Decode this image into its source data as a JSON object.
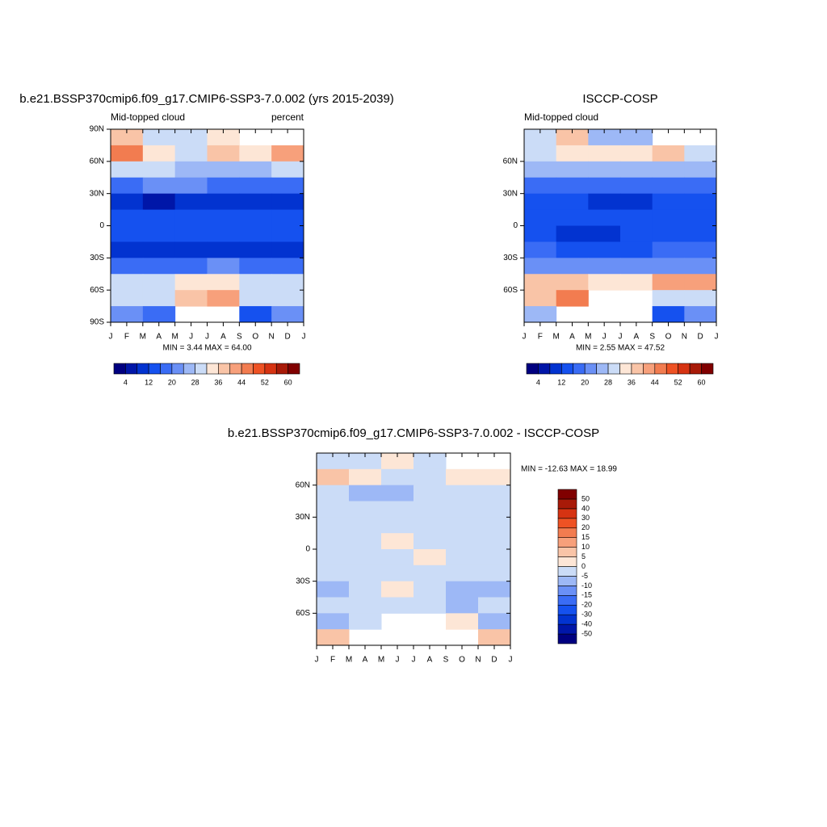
{
  "chart_data": [
    {
      "type": "contour",
      "title": "b.e21.BSSP370cmip6.f09_g17.CMIP6-SSP3-7.0.002 (yrs 2015-2039)",
      "subtitle_left": "Mid-topped cloud",
      "subtitle_right": "percent",
      "stats": "MIN =   3.44 MAX =  64.00",
      "categories": [
        "J",
        "F",
        "M",
        "A",
        "M",
        "J",
        "J",
        "A",
        "S",
        "O",
        "N",
        "D",
        "J"
      ],
      "ylim": [
        -90,
        90
      ],
      "yticks": [
        {
          "value": 90,
          "label": "90N"
        },
        {
          "value": 60,
          "label": "60N"
        },
        {
          "value": 30,
          "label": "30N"
        },
        0,
        {
          "value": -30,
          "label": "30S"
        },
        {
          "value": -60,
          "label": "60S"
        },
        {
          "value": -90,
          "label": "90S"
        }
      ],
      "z": [
        [
          38,
          30,
          28,
          34,
          null,
          null
        ],
        [
          44,
          34,
          30,
          36,
          34,
          42
        ],
        [
          30,
          28,
          26,
          26,
          26,
          28
        ],
        [
          18,
          20,
          20,
          18,
          18,
          18
        ],
        [
          8,
          6,
          8,
          10,
          10,
          8
        ],
        [
          12,
          12,
          14,
          14,
          12,
          12
        ],
        [
          14,
          14,
          15,
          14,
          14,
          14
        ],
        [
          10,
          10,
          10,
          10,
          10,
          10
        ],
        [
          18,
          18,
          18,
          20,
          18,
          18
        ],
        [
          30,
          30,
          34,
          32,
          30,
          30
        ],
        [
          28,
          30,
          36,
          40,
          30,
          28
        ],
        [
          20,
          18,
          null,
          null,
          14,
          22
        ]
      ],
      "levels": [
        4,
        8,
        12,
        16,
        20,
        24,
        28,
        32,
        36,
        40,
        44,
        48,
        52,
        56,
        60
      ],
      "level_ticks": [
        4,
        12,
        20,
        28,
        36,
        44,
        52,
        60
      ],
      "colors": [
        "#000080",
        "#0016a8",
        "#0233d0",
        "#1551ef",
        "#3a6cf5",
        "#6a90f6",
        "#9db8f6",
        "#cbdcf7",
        "#fde6d6",
        "#f9c4a7",
        "#f7a07b",
        "#f27c50",
        "#ee5224",
        "#d63312",
        "#a81a08",
        "#800000"
      ],
      "colorbar": "horizontal"
    },
    {
      "type": "contour",
      "title": "ISCCP-COSP",
      "subtitle_left": "Mid-topped cloud",
      "stats": "MIN =   2.55 MAX =  47.52",
      "categories": [
        "J",
        "F",
        "M",
        "A",
        "M",
        "J",
        "J",
        "A",
        "S",
        "O",
        "N",
        "D",
        "J"
      ],
      "ylim": [
        -90,
        90
      ],
      "yticks": [
        {
          "value": 60,
          "label": "60N"
        },
        {
          "value": 30,
          "label": "30N"
        },
        0,
        {
          "value": -30,
          "label": "30S"
        },
        {
          "value": -60,
          "label": "60S"
        }
      ],
      "z": [
        [
          28,
          36,
          26,
          26,
          null,
          null
        ],
        [
          30,
          34,
          32,
          34,
          36,
          30
        ],
        [
          24,
          24,
          24,
          24,
          24,
          26
        ],
        [
          18,
          18,
          18,
          16,
          18,
          18
        ],
        [
          12,
          12,
          10,
          10,
          12,
          12
        ],
        [
          14,
          14,
          14,
          14,
          14,
          14
        ],
        [
          14,
          11,
          11,
          12,
          14,
          14
        ],
        [
          16,
          14,
          14,
          14,
          16,
          16
        ],
        [
          22,
          22,
          22,
          22,
          22,
          22
        ],
        [
          36,
          36,
          34,
          34,
          40,
          40
        ],
        [
          36,
          44,
          null,
          null,
          30,
          30
        ],
        [
          24,
          null,
          null,
          null,
          14,
          20
        ]
      ],
      "levels": [
        4,
        8,
        12,
        16,
        20,
        24,
        28,
        32,
        36,
        40,
        44,
        48,
        52,
        56,
        60
      ],
      "level_ticks": [
        4,
        12,
        20,
        28,
        36,
        44,
        52,
        60
      ],
      "colors": [
        "#000080",
        "#0016a8",
        "#0233d0",
        "#1551ef",
        "#3a6cf5",
        "#6a90f6",
        "#9db8f6",
        "#cbdcf7",
        "#fde6d6",
        "#f9c4a7",
        "#f7a07b",
        "#f27c50",
        "#ee5224",
        "#d63312",
        "#a81a08",
        "#800000"
      ],
      "colorbar": "horizontal"
    },
    {
      "type": "contour",
      "title": "b.e21.BSSP370cmip6.f09_g17.CMIP6-SSP3-7.0.002 - ISCCP-COSP",
      "stats": "MIN = -12.63 MAX =  18.99",
      "categories": [
        "J",
        "F",
        "M",
        "A",
        "M",
        "J",
        "J",
        "A",
        "S",
        "O",
        "N",
        "D",
        "J"
      ],
      "ylim": [
        -90,
        90
      ],
      "yticks": [
        {
          "value": 60,
          "label": "60N"
        },
        {
          "value": 30,
          "label": "30N"
        },
        0,
        {
          "value": -30,
          "label": "30S"
        },
        {
          "value": -60,
          "label": "60S"
        }
      ],
      "z": [
        [
          -3,
          -2,
          3,
          -3,
          null,
          null
        ],
        [
          6,
          3,
          -3,
          -2,
          4,
          2
        ],
        [
          -3,
          -7,
          -8,
          -3,
          -3,
          -3
        ],
        [
          -5,
          -3,
          -3,
          -2,
          -3,
          -3
        ],
        [
          -3,
          -3,
          -3,
          -2,
          -2,
          -3
        ],
        [
          -3,
          -3,
          2,
          -3,
          -2,
          -3
        ],
        [
          -3,
          -3,
          -3,
          3,
          -3,
          -3
        ],
        [
          -3,
          -3,
          -3,
          -3,
          -3,
          -3
        ],
        [
          -7,
          -3,
          3,
          -3,
          -7,
          -7
        ],
        [
          -3,
          -3,
          -3,
          -2,
          -7,
          -3
        ],
        [
          -8,
          -3,
          null,
          null,
          3,
          -8
        ],
        [
          8,
          null,
          null,
          null,
          null,
          8
        ]
      ],
      "levels": [
        -50,
        -40,
        -30,
        -20,
        -15,
        -10,
        -5,
        0,
        5,
        10,
        15,
        20,
        30,
        40,
        50
      ],
      "level_ticks": [
        -50,
        -40,
        -30,
        -20,
        -15,
        -10,
        -5,
        0,
        5,
        10,
        15,
        20,
        30,
        40,
        50
      ],
      "colors": [
        "#000080",
        "#0016a8",
        "#0233d0",
        "#1551ef",
        "#3a6cf5",
        "#6a90f6",
        "#9db8f6",
        "#cbdcf7",
        "#fde6d6",
        "#f9c4a7",
        "#f7a07b",
        "#f27c50",
        "#ee5224",
        "#d63312",
        "#a81a08",
        "#800000"
      ],
      "colorbar": "vertical"
    }
  ]
}
